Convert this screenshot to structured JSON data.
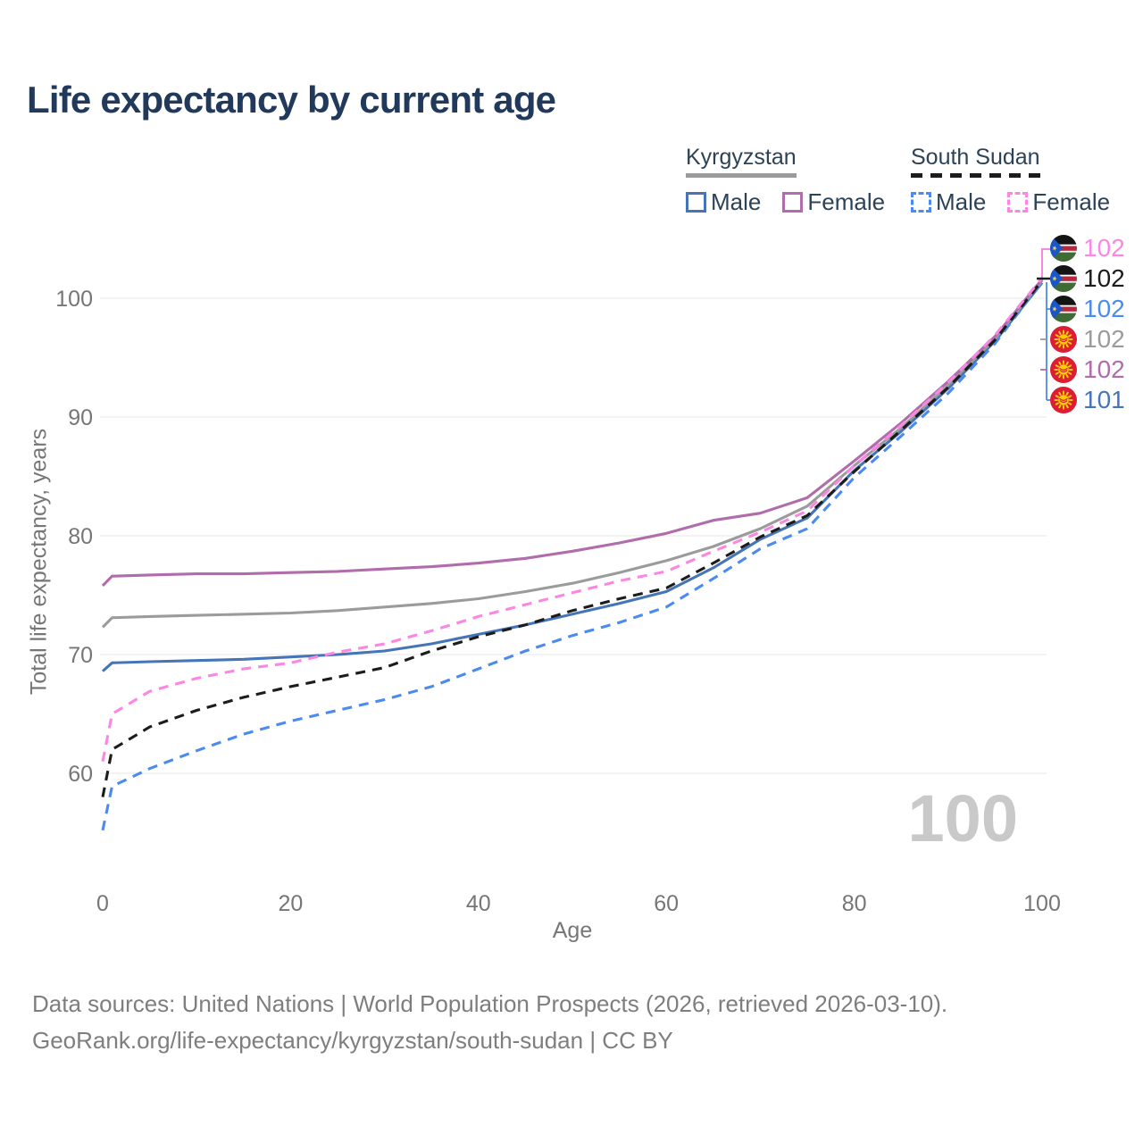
{
  "title": "Life expectancy by current age",
  "legend": {
    "groups": [
      {
        "country": "Kyrgyzstan",
        "line_style": "solid",
        "underline_color": "#9b9b9b",
        "entries": [
          {
            "label": "Male",
            "color": "#4675b7"
          },
          {
            "label": "Female",
            "color": "#b06cab"
          }
        ]
      },
      {
        "country": "South Sudan",
        "line_style": "dashed",
        "underline_color": "#1c1c1c",
        "entries": [
          {
            "label": "Male",
            "color": "#4b8bf0"
          },
          {
            "label": "Female",
            "color": "#fb87e3"
          }
        ]
      }
    ]
  },
  "watermark_age": "100",
  "footer": {
    "line1": "Data sources: United Nations | World Population Prospects (2026, retrieved 2026-03-10).",
    "line2": "GeoRank.org/life-expectancy/kyrgyzstan/south-sudan | CC BY"
  },
  "chart_data": {
    "type": "line",
    "title": "Life expectancy by current age",
    "xlabel": "Age",
    "ylabel": "Total life expectancy, years",
    "xlim": [
      0,
      100
    ],
    "ylim": [
      54,
      103
    ],
    "xticks": [
      0,
      20,
      40,
      60,
      80,
      100
    ],
    "yticks": [
      60,
      70,
      80,
      90,
      100
    ],
    "grid": "horizontal",
    "legend_position": "top-right",
    "x": [
      0,
      1,
      5,
      10,
      15,
      20,
      25,
      30,
      35,
      40,
      45,
      50,
      55,
      60,
      65,
      70,
      75,
      80,
      85,
      90,
      95,
      100
    ],
    "series": [
      {
        "name": "Kyrgyzstan Male",
        "country": "Kyrgyzstan",
        "sex": "Male",
        "style": "solid",
        "color": "#4675b7",
        "values": [
          68.6,
          69.3,
          69.4,
          69.5,
          69.6,
          69.8,
          70.0,
          70.3,
          70.9,
          71.7,
          72.5,
          73.4,
          74.3,
          75.3,
          77.3,
          79.7,
          81.5,
          85.5,
          88.8,
          92.4,
          96.4,
          101.3
        ]
      },
      {
        "name": "South Sudan Male",
        "country": "South Sudan",
        "sex": "Male",
        "style": "dashed",
        "color": "#4b8bf0",
        "values": [
          55.2,
          58.9,
          60.4,
          61.9,
          63.3,
          64.4,
          65.3,
          66.2,
          67.3,
          68.8,
          70.3,
          71.6,
          72.7,
          74.0,
          76.4,
          78.9,
          80.6,
          84.9,
          88.4,
          92.0,
          96.2,
          101.4
        ]
      },
      {
        "name": "Kyrgyzstan Total",
        "country": "Kyrgyzstan",
        "sex": "Both",
        "style": "solid",
        "color": "#9b9b9b",
        "values": [
          72.3,
          73.1,
          73.2,
          73.3,
          73.4,
          73.5,
          73.7,
          74.0,
          74.3,
          74.7,
          75.3,
          76.0,
          76.9,
          77.9,
          79.1,
          80.6,
          82.5,
          85.9,
          89.1,
          92.7,
          96.6,
          101.5
        ]
      },
      {
        "name": "Kyrgyzstan Female",
        "country": "Kyrgyzstan",
        "sex": "Female",
        "style": "solid",
        "color": "#b06cab",
        "values": [
          75.8,
          76.6,
          76.7,
          76.8,
          76.8,
          76.9,
          77.0,
          77.2,
          77.4,
          77.7,
          78.1,
          78.7,
          79.4,
          80.2,
          81.3,
          81.9,
          83.2,
          86.3,
          89.5,
          93.0,
          96.8,
          101.6
        ]
      },
      {
        "name": "South Sudan Total",
        "country": "South Sudan",
        "sex": "Both",
        "style": "dashed",
        "color": "#1c1c1c",
        "values": [
          58.0,
          62.0,
          63.9,
          65.3,
          66.4,
          67.3,
          68.1,
          68.9,
          70.3,
          71.5,
          72.5,
          73.7,
          74.7,
          75.6,
          77.7,
          79.9,
          81.7,
          85.4,
          88.9,
          92.5,
          96.5,
          101.5
        ]
      },
      {
        "name": "South Sudan Female",
        "country": "South Sudan",
        "sex": "Female",
        "style": "dashed",
        "color": "#fb87e3",
        "values": [
          61.0,
          65.0,
          66.9,
          68.0,
          68.8,
          69.3,
          70.2,
          70.9,
          72.0,
          73.2,
          74.2,
          75.2,
          76.2,
          77.0,
          78.7,
          80.3,
          82.1,
          85.9,
          89.3,
          92.9,
          96.9,
          101.7
        ]
      }
    ],
    "end_labels": [
      {
        "value": "102",
        "series": "South Sudan Female",
        "flag": "south-sudan",
        "color": "#fb87e3"
      },
      {
        "value": "102",
        "series": "South Sudan Total",
        "flag": "south-sudan",
        "color": "#1c1c1c"
      },
      {
        "value": "102",
        "series": "South Sudan Male",
        "flag": "south-sudan",
        "color": "#4b8bf0"
      },
      {
        "value": "102",
        "series": "Kyrgyzstan Total",
        "flag": "kyrgyzstan",
        "color": "#9b9b9b"
      },
      {
        "value": "102",
        "series": "Kyrgyzstan Female",
        "flag": "kyrgyzstan",
        "color": "#b06cab"
      },
      {
        "value": "101",
        "series": "Kyrgyzstan Male",
        "flag": "kyrgyzstan",
        "color": "#4675b7"
      }
    ]
  }
}
